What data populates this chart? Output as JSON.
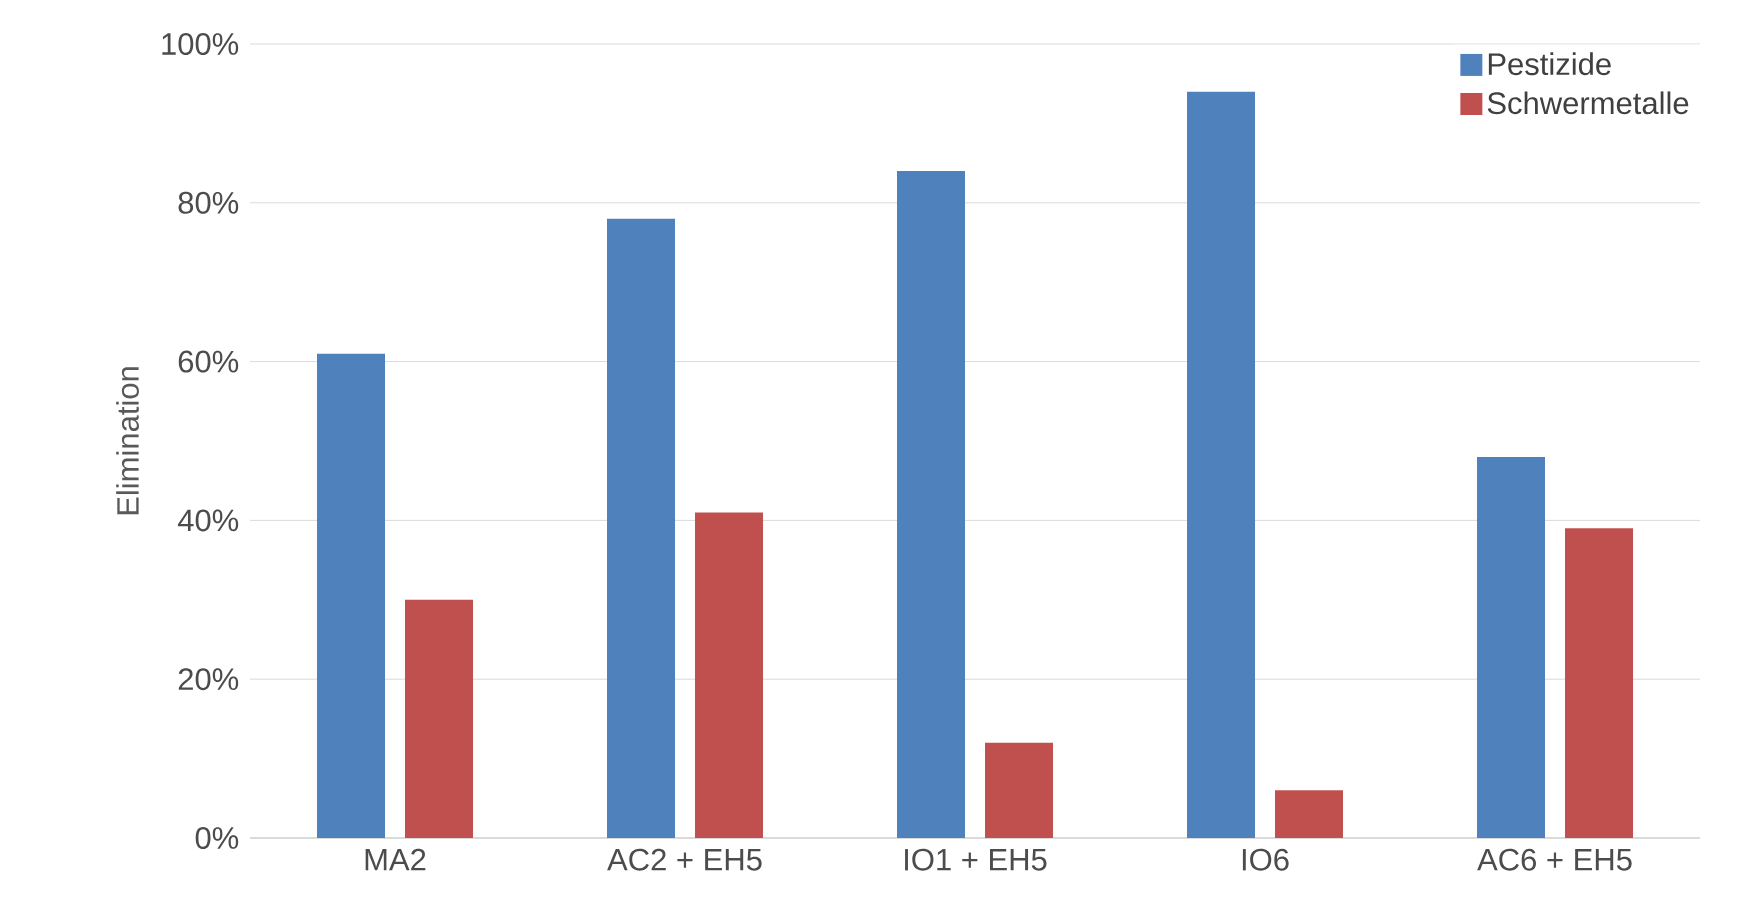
{
  "chart_data": {
    "type": "bar",
    "ylabel": "Elimination",
    "categories": [
      "MA2",
      "AC2 + EH5",
      "IO1 + EH5",
      "IO6",
      "AC6 + EH5"
    ],
    "series": [
      {
        "name": "Pestizide",
        "color": "#4f81bd",
        "values": [
          61,
          78,
          84,
          94,
          48
        ]
      },
      {
        "name": "Schwermetalle",
        "color": "#c0504d",
        "values": [
          30,
          41,
          12,
          6,
          39
        ]
      }
    ],
    "ylim": [
      0,
      100
    ],
    "yticks": [
      {
        "value": 0,
        "label": "0%"
      },
      {
        "value": 20,
        "label": "20%"
      },
      {
        "value": 40,
        "label": "40%"
      },
      {
        "value": 60,
        "label": "60%"
      },
      {
        "value": 80,
        "label": "80%"
      },
      {
        "value": 100,
        "label": "100%"
      }
    ],
    "grid": "y",
    "legend": "top right"
  }
}
